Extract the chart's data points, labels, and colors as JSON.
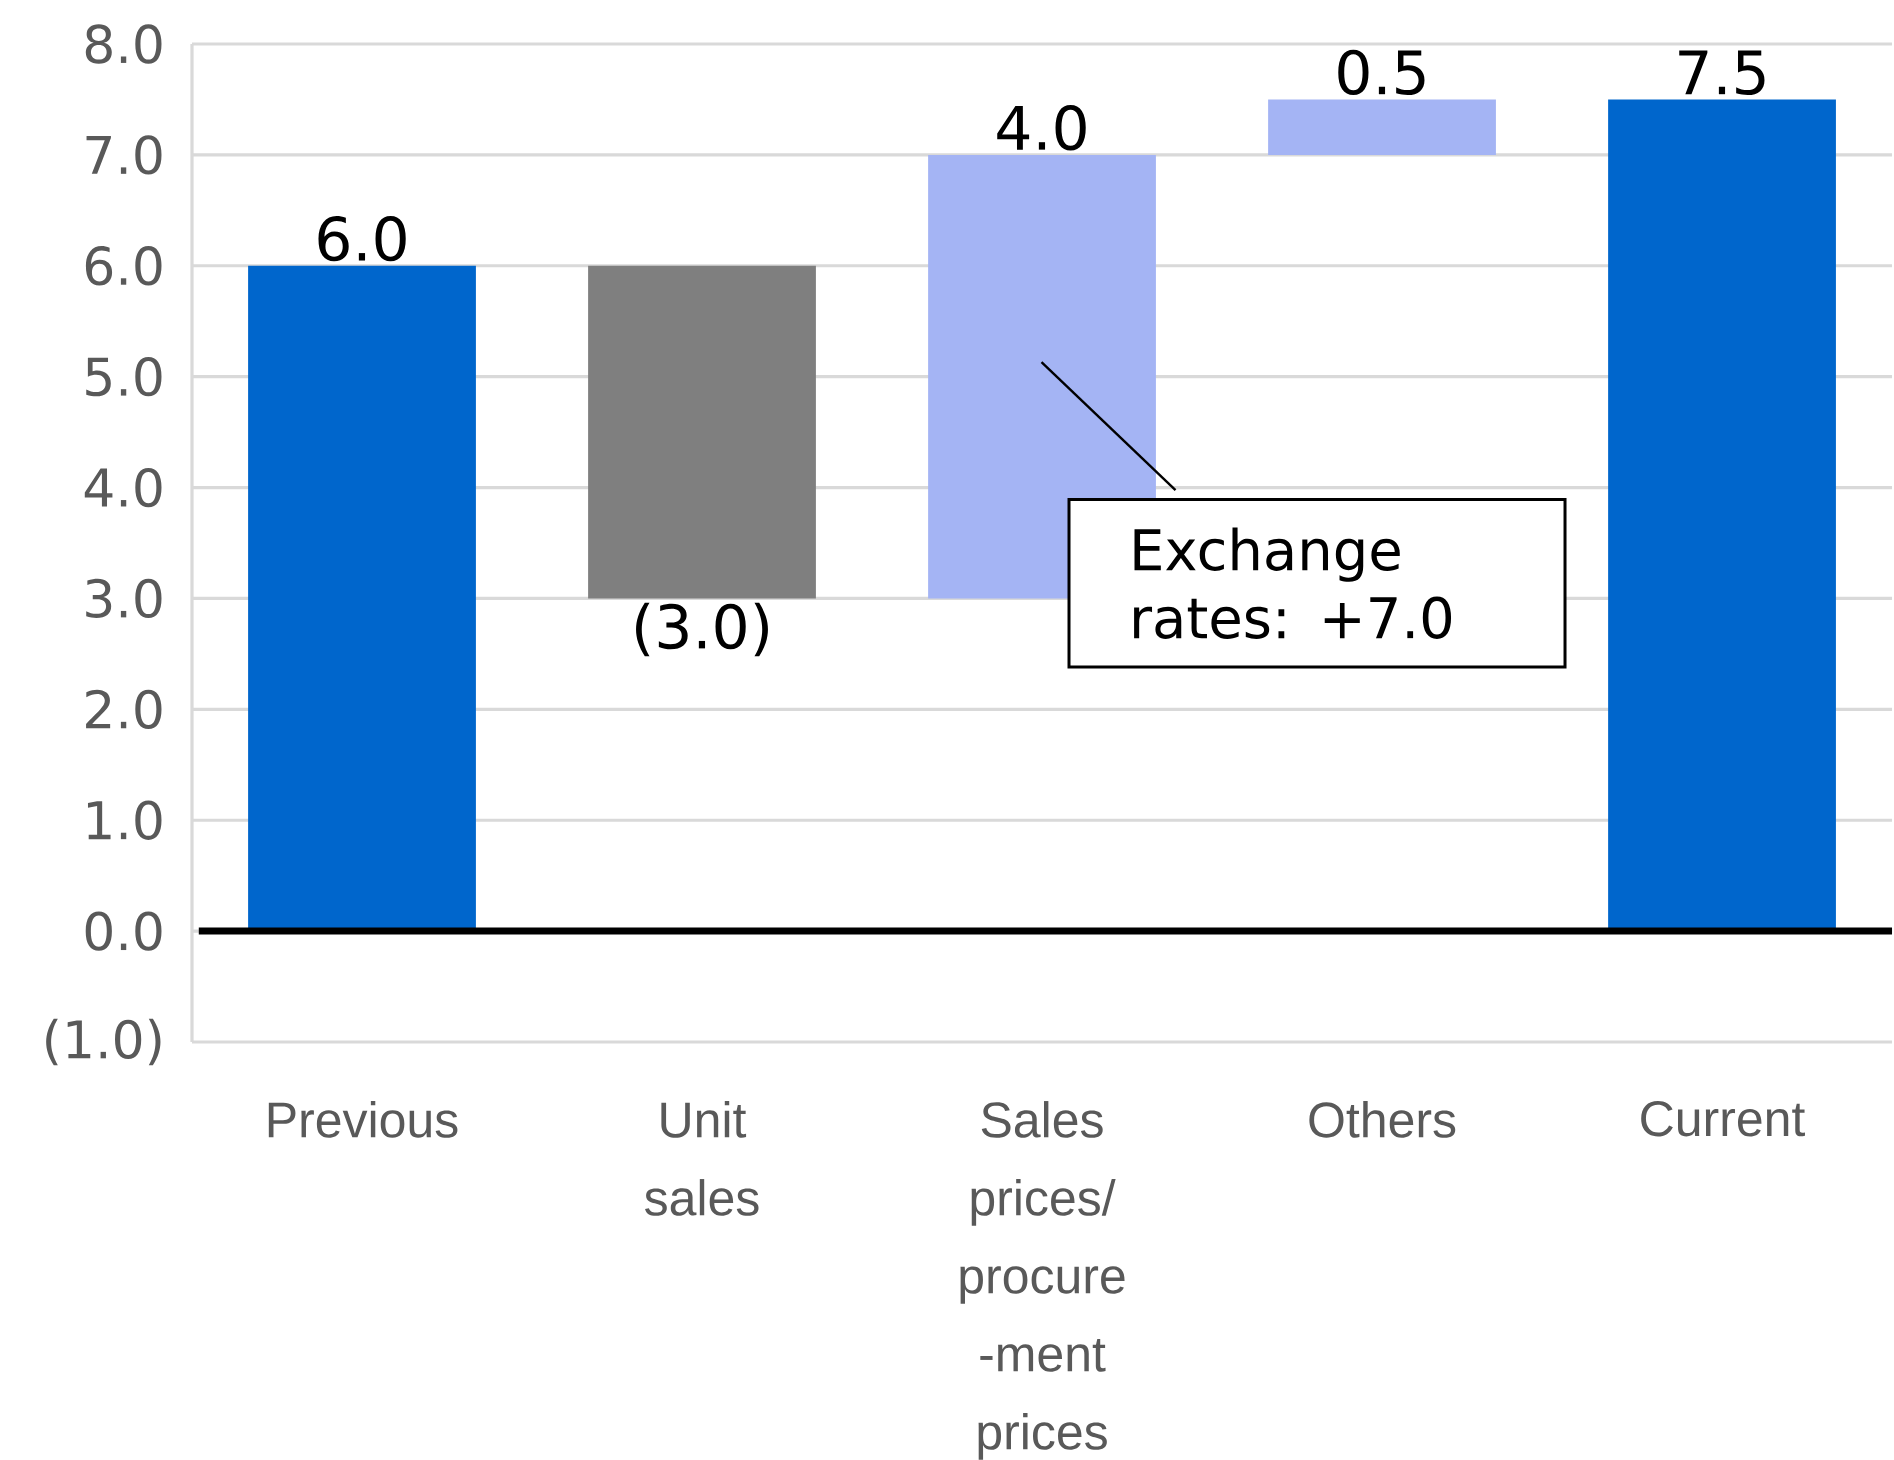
{
  "chart_data": {
    "type": "bar",
    "categories": [
      "Previous",
      "Unit sales",
      "Sales prices/ procure -ment prices",
      "Others",
      "Current"
    ],
    "values": [
      6.0,
      -3.0,
      4.0,
      0.5,
      7.5
    ],
    "base": [
      0,
      6.0,
      3.0,
      7.0,
      0
    ],
    "colors": [
      "#0066cc",
      "#7f7f7f",
      "#a4b4f4",
      "#a4b4f4",
      "#0066cc"
    ],
    "value_labels": [
      "6.0",
      "(3.0)",
      "4.0",
      "0.5",
      "7.5"
    ],
    "ylim": [
      -1,
      8
    ],
    "yticks": [
      {
        "value": -1,
        "label": "(1.0)"
      },
      {
        "value": 0,
        "label": "0.0"
      },
      {
        "value": 1,
        "label": "1.0"
      },
      {
        "value": 2,
        "label": "2.0"
      },
      {
        "value": 3,
        "label": "3.0"
      },
      {
        "value": 4,
        "label": "4.0"
      },
      {
        "value": 5,
        "label": "5.0"
      },
      {
        "value": 6,
        "label": "6.0"
      },
      {
        "value": 7,
        "label": "7.0"
      },
      {
        "value": 8,
        "label": "8.0"
      }
    ],
    "grid": "y",
    "ref_lines": [
      {
        "axis": "y",
        "value": 0,
        "color": "#000000"
      }
    ],
    "annotations": [
      "Exchange rates: +7.0"
    ]
  }
}
